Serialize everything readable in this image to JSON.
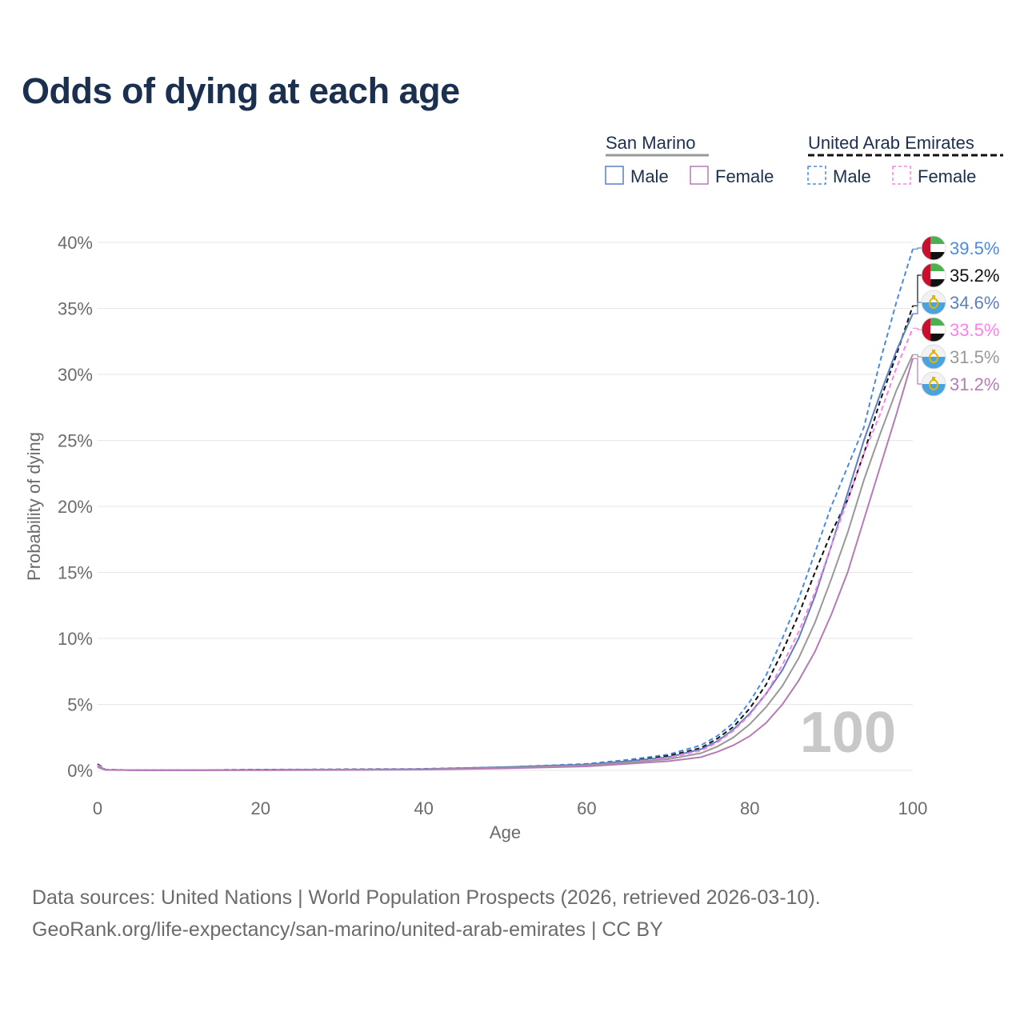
{
  "title": "Odds of dying at each age",
  "footer": {
    "line1": "Data sources: United Nations | World Population Prospects (2026, retrieved 2026-03-10).",
    "line2": "GeoRank.org/life-expectancy/san-marino/united-arab-emirates | CC BY"
  },
  "legend": {
    "groups": [
      {
        "name": "San Marino",
        "line_color": "#999999",
        "line_style": "solid",
        "items": [
          {
            "label": "Male",
            "color": "#5b7fbf",
            "style": "solid"
          },
          {
            "label": "Female",
            "color": "#b57bb5",
            "style": "solid"
          }
        ]
      },
      {
        "name": "United Arab Emirates",
        "line_color": "#111111",
        "line_style": "dashed",
        "items": [
          {
            "label": "Male",
            "color": "#4a8be0",
            "style": "dashed"
          },
          {
            "label": "Female",
            "color": "#ff80e6",
            "style": "dashed"
          }
        ]
      }
    ]
  },
  "chart_data": {
    "type": "line",
    "title": "Odds of dying at each age",
    "xlabel": "Age",
    "ylabel": "Probability of dying",
    "xlim": [
      0,
      100
    ],
    "ylim": [
      0,
      40
    ],
    "xticks": [
      "0",
      "20",
      "40",
      "60",
      "80",
      "100"
    ],
    "xtick_values": [
      0,
      20,
      40,
      60,
      80,
      100
    ],
    "yticks": [
      "0%",
      "5%",
      "10%",
      "15%",
      "20%",
      "25%",
      "30%",
      "35%",
      "40%"
    ],
    "ytick_values": [
      0,
      5,
      10,
      15,
      20,
      25,
      30,
      35,
      40
    ],
    "watermark": "100",
    "x": [
      0,
      1,
      5,
      10,
      20,
      30,
      40,
      50,
      60,
      65,
      70,
      74,
      76,
      78,
      80,
      82,
      84,
      86,
      88,
      90,
      92,
      94,
      96,
      98,
      100
    ],
    "series": [
      {
        "name": "UAE Male",
        "country": "United Arab Emirates",
        "flag": "uae",
        "color": "#4a8be0",
        "dash": "dashed",
        "end_label": "39.5%",
        "values": [
          0.5,
          0.05,
          0.02,
          0.02,
          0.06,
          0.08,
          0.12,
          0.25,
          0.5,
          0.8,
          1.2,
          1.9,
          2.6,
          3.6,
          5.2,
          7.2,
          10.0,
          13.0,
          16.5,
          20.0,
          23.0,
          26.0,
          31.0,
          35.5,
          39.5
        ]
      },
      {
        "name": "UAE Total",
        "country": "United Arab Emirates",
        "flag": "uae",
        "color": "#111111",
        "dash": "dashed",
        "end_label": "35.2%",
        "values": [
          0.45,
          0.05,
          0.02,
          0.02,
          0.05,
          0.07,
          0.1,
          0.22,
          0.45,
          0.7,
          1.1,
          1.7,
          2.4,
          3.3,
          4.7,
          6.5,
          9.0,
          11.8,
          15.0,
          18.0,
          20.5,
          24.0,
          28.0,
          31.5,
          35.2
        ]
      },
      {
        "name": "San Marino Male",
        "country": "San Marino",
        "flag": "san-marino",
        "color": "#5b7fbf",
        "dash": "solid",
        "end_label": "34.6%",
        "values": [
          0.35,
          0.04,
          0.01,
          0.01,
          0.04,
          0.06,
          0.1,
          0.25,
          0.45,
          0.7,
          1.0,
          1.6,
          2.2,
          3.1,
          4.3,
          5.8,
          7.6,
          10.0,
          13.2,
          17.0,
          21.0,
          25.0,
          28.5,
          31.8,
          34.6
        ]
      },
      {
        "name": "UAE Female",
        "country": "United Arab Emirates",
        "flag": "uae",
        "color": "#ff80e6",
        "dash": "dashed",
        "end_label": "33.5%",
        "values": [
          0.4,
          0.04,
          0.02,
          0.02,
          0.03,
          0.05,
          0.08,
          0.18,
          0.38,
          0.6,
          0.95,
          1.5,
          2.1,
          3.0,
          4.2,
          5.8,
          8.0,
          10.5,
          13.5,
          17.0,
          20.5,
          24.0,
          27.0,
          30.5,
          33.5
        ]
      },
      {
        "name": "San Marino Total",
        "country": "San Marino",
        "flag": "san-marino",
        "color": "#999999",
        "dash": "solid",
        "end_label": "31.5%",
        "values": [
          0.3,
          0.04,
          0.01,
          0.01,
          0.03,
          0.05,
          0.08,
          0.2,
          0.38,
          0.6,
          0.85,
          1.3,
          1.8,
          2.5,
          3.5,
          4.8,
          6.4,
          8.5,
          11.2,
          14.5,
          18.0,
          22.0,
          25.5,
          28.8,
          31.5
        ]
      },
      {
        "name": "San Marino Female",
        "country": "San Marino",
        "flag": "san-marino",
        "color": "#b57bb5",
        "dash": "solid",
        "end_label": "31.2%",
        "values": [
          0.25,
          0.03,
          0.01,
          0.01,
          0.02,
          0.03,
          0.06,
          0.15,
          0.3,
          0.5,
          0.7,
          1.0,
          1.4,
          1.9,
          2.6,
          3.6,
          5.0,
          6.8,
          9.0,
          11.8,
          15.0,
          19.0,
          23.0,
          27.0,
          31.2
        ]
      }
    ]
  }
}
